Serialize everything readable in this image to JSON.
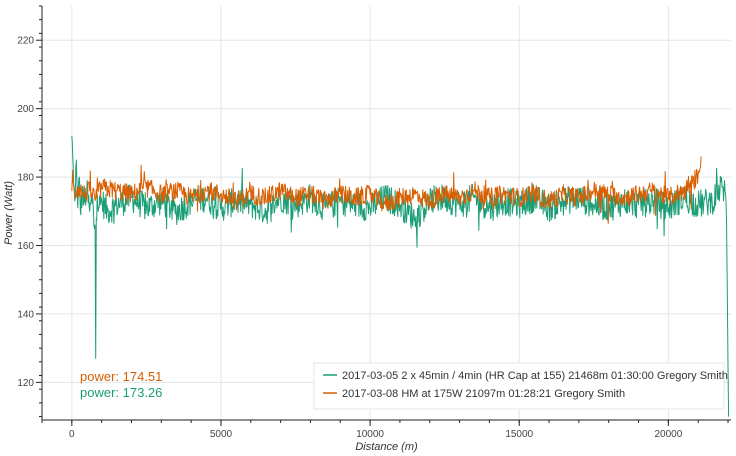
{
  "chart_data": {
    "type": "line",
    "xlabel": "Distance (m)",
    "ylabel": "Power (Watt)",
    "xlim": [
      -1000,
      22100
    ],
    "ylim": [
      109,
      230
    ],
    "x_ticks": [
      0,
      5000,
      10000,
      15000,
      20000
    ],
    "y_ticks": [
      120,
      140,
      160,
      180,
      200,
      220
    ],
    "grid": true,
    "legend_position": "bottom-right",
    "series": [
      {
        "name": "2017-03-05 2 x 45min / 4min (HR Cap at 155) 21468m 01:30:00 Gregory Smith",
        "color": "#1b9e77",
        "x": [
          0,
          30,
          60,
          100,
          150,
          200,
          250,
          300,
          350,
          400,
          500,
          600,
          700,
          780,
          800,
          820,
          850,
          900,
          1000,
          1200,
          1500,
          2000,
          2500,
          3000,
          3500,
          4000,
          4500,
          5000,
          5500,
          6000,
          6500,
          7000,
          7500,
          8000,
          8500,
          9000,
          9500,
          10000,
          10500,
          11000,
          11500,
          12000,
          12500,
          13000,
          13500,
          14000,
          14500,
          15000,
          15500,
          16000,
          16500,
          17000,
          17500,
          18000,
          18500,
          19000,
          19500,
          20000,
          20500,
          21000,
          21468,
          21600,
          21800,
          21900,
          21950,
          22000,
          22020
        ],
        "values": [
          192,
          186,
          178,
          173,
          185,
          171,
          180,
          169,
          177,
          172,
          176,
          170,
          174,
          166,
          127,
          168,
          175,
          171,
          173,
          170,
          172,
          174,
          171,
          173,
          170,
          173,
          174,
          171,
          173,
          172,
          170,
          174,
          172,
          174,
          171,
          173,
          172,
          171,
          174,
          172,
          168,
          173,
          174,
          172,
          174,
          171,
          173,
          172,
          174,
          171,
          173,
          174,
          172,
          171,
          173,
          172,
          173,
          171,
          174,
          172,
          173,
          175,
          177,
          176,
          168,
          125,
          110
        ]
      },
      {
        "name": "2017-03-08 HM at 175W 21097m 01:28:21 Gregory Smith",
        "color": "#d95f02",
        "x": [
          0,
          30,
          60,
          100,
          200,
          400,
          600,
          800,
          1000,
          1500,
          2000,
          2500,
          3000,
          3500,
          4000,
          4500,
          5000,
          5500,
          6000,
          6500,
          7000,
          7500,
          8000,
          8500,
          9000,
          9500,
          10000,
          10500,
          11000,
          11500,
          12000,
          12500,
          13000,
          13500,
          14000,
          14500,
          15000,
          15500,
          16000,
          16500,
          17000,
          17500,
          18000,
          18500,
          19000,
          19500,
          20000,
          20500,
          20800,
          21000,
          21097
        ],
        "values": [
          176,
          182,
          178,
          175,
          177,
          175,
          176,
          174,
          177,
          176,
          175,
          177,
          175,
          176,
          174,
          176,
          175,
          173,
          175,
          174,
          176,
          174,
          175,
          173,
          175,
          174,
          175,
          172,
          174,
          175,
          173,
          175,
          174,
          176,
          174,
          175,
          174,
          175,
          173,
          175,
          174,
          176,
          175,
          174,
          175,
          176,
          174,
          176,
          178,
          181,
          186
        ]
      }
    ],
    "annotations": [
      {
        "text": "power: 174.51",
        "color": "#d95f02"
      },
      {
        "text": "power: 173.26",
        "color": "#1b9e77"
      }
    ]
  }
}
